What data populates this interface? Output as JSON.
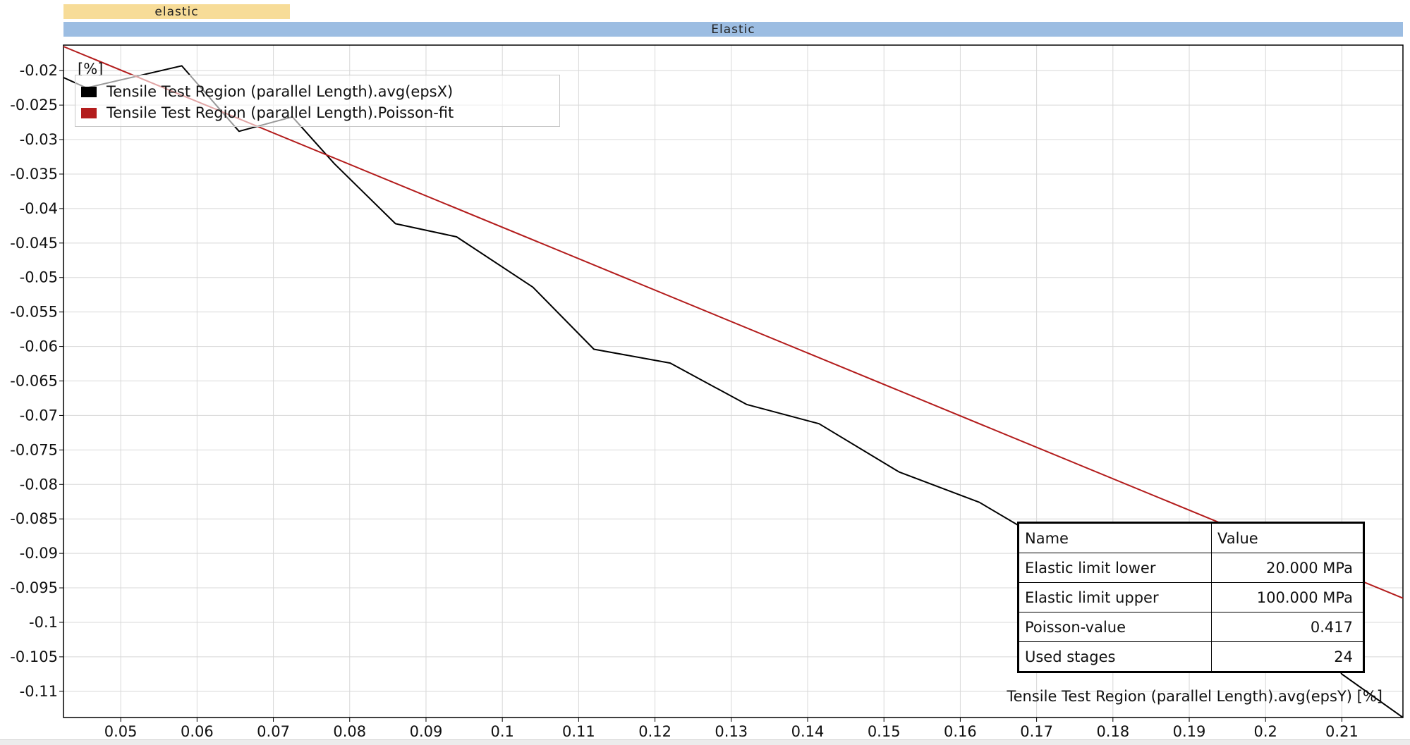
{
  "ranges": {
    "small_label": "elastic",
    "large_label": "Elastic"
  },
  "chart_data": {
    "type": "line",
    "title": "",
    "xlabel": "Tensile Test Region (parallel Length).avg(epsY) [%]",
    "ylabel": "[%]",
    "xlim": [
      0.0425,
      0.218
    ],
    "ylim": [
      -0.1138,
      -0.0163
    ],
    "x_ticks": [
      "0.05",
      "0.06",
      "0.07",
      "0.08",
      "0.09",
      "0.1",
      "0.11",
      "0.12",
      "0.13",
      "0.14",
      "0.15",
      "0.16",
      "0.17",
      "0.18",
      "0.19",
      "0.2",
      "0.21"
    ],
    "y_ticks": [
      "-0.02",
      "-0.025",
      "-0.03",
      "-0.035",
      "-0.04",
      "-0.045",
      "-0.05",
      "-0.055",
      "-0.06",
      "-0.065",
      "-0.07",
      "-0.075",
      "-0.08",
      "-0.085",
      "-0.09",
      "-0.095",
      "-0.1",
      "-0.105",
      "-0.11"
    ],
    "grid": true,
    "legend_position": "top-left",
    "series": [
      {
        "name": "Tensile Test Region (parallel Length).avg(epsX)",
        "color": "#000000",
        "x": [
          0.0425,
          0.0455,
          0.058,
          0.0655,
          0.0725,
          0.078,
          0.086,
          0.094,
          0.104,
          0.112,
          0.122,
          0.132,
          0.1415,
          0.152,
          0.1625,
          0.168,
          0.175,
          0.18,
          0.19,
          0.2,
          0.2045,
          0.21,
          0.218
        ],
        "y": [
          -0.021,
          -0.0225,
          -0.0193,
          -0.0288,
          -0.0267,
          -0.0335,
          -0.0422,
          -0.0441,
          -0.0514,
          -0.0604,
          -0.0624,
          -0.0684,
          -0.0712,
          -0.0782,
          -0.0826,
          -0.0862,
          -0.088,
          -0.089,
          -0.0925,
          -0.096,
          -0.098,
          -0.1075,
          -0.1138
        ]
      },
      {
        "name": "Tensile Test Region (parallel Length).Poisson-fit",
        "color": "#b31c1c",
        "x": [
          0.0425,
          0.218
        ],
        "y": [
          -0.0165,
          -0.0965
        ]
      }
    ]
  },
  "results_table": {
    "header": {
      "name": "Name",
      "value": "Value"
    },
    "rows": [
      {
        "name": "Elastic limit lower",
        "value": "20.000 MPa"
      },
      {
        "name": "Elastic limit upper",
        "value": "100.000 MPa"
      },
      {
        "name": "Poisson-value",
        "value": "0.417"
      },
      {
        "name": "Used stages",
        "value": "24"
      }
    ]
  }
}
